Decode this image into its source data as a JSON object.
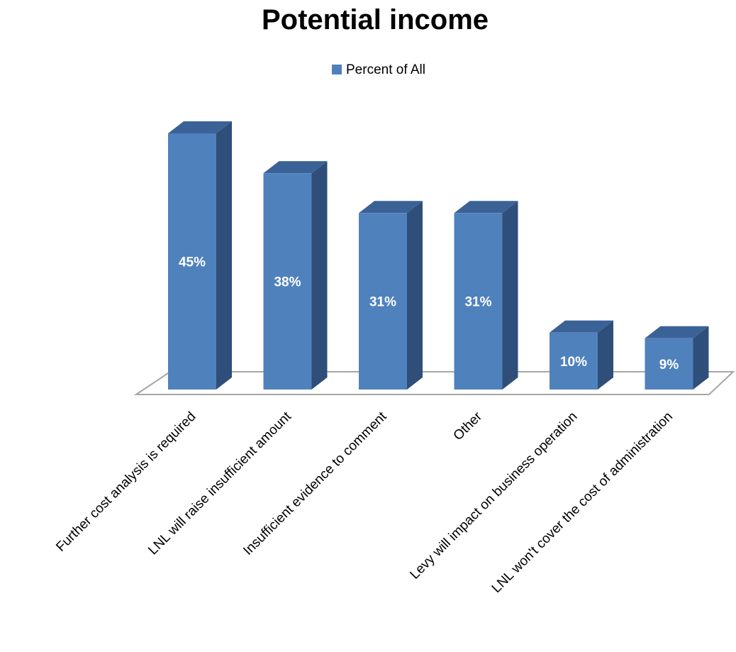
{
  "chart_data": {
    "type": "bar",
    "title": "Potential income",
    "categories": [
      "Further cost analysis is required",
      "LNL will raise insufficient amount",
      "Insufficient evidence to comment",
      "Other",
      "Levy will impact on business operation",
      "LNL won't cover the cost of administration"
    ],
    "series": [
      {
        "name": "Percent of All",
        "values": [
          45,
          38,
          31,
          31,
          10,
          9
        ]
      }
    ],
    "data_labels": [
      "45%",
      "38%",
      "31%",
      "31%",
      "10%",
      "9%"
    ],
    "xlabel": "",
    "ylabel": "",
    "ylim": [
      0,
      45
    ],
    "grid": false,
    "legend_position": "top",
    "style": "3d-column",
    "colors": {
      "front": "#4f81bd",
      "top": "#3a6296",
      "side": "#2f4f7a",
      "floor_stroke": "#a6a6a6"
    }
  }
}
